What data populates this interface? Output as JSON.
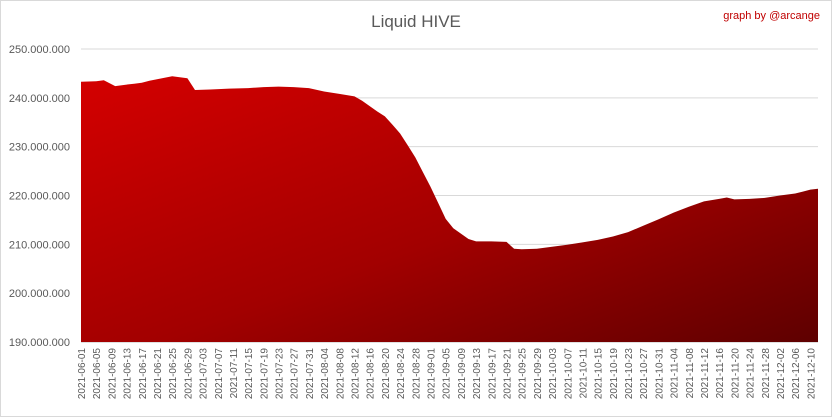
{
  "chart_data": {
    "type": "area",
    "title": "Liquid HIVE",
    "credit": "graph by @arcange",
    "xlabel": "",
    "ylabel": "",
    "ylim": [
      190000000,
      250000000
    ],
    "grid": true,
    "legend": "none",
    "y_ticks": [
      "190.000.000",
      "200.000.000",
      "210.000.000",
      "220.000.000",
      "230.000.000",
      "240.000.000",
      "250.000.000"
    ],
    "x_tick_labels": [
      "2021-06-01",
      "2021-06-05",
      "2021-06-09",
      "2021-06-13",
      "2021-06-17",
      "2021-06-21",
      "2021-06-25",
      "2021-06-29",
      "2021-07-03",
      "2021-07-07",
      "2021-07-11",
      "2021-07-15",
      "2021-07-19",
      "2021-07-23",
      "2021-07-27",
      "2021-07-31",
      "2021-08-04",
      "2021-08-08",
      "2021-08-12",
      "2021-08-16",
      "2021-08-20",
      "2021-08-24",
      "2021-08-28",
      "2021-09-01",
      "2021-09-05",
      "2021-09-09",
      "2021-09-13",
      "2021-09-17",
      "2021-09-21",
      "2021-09-25",
      "2021-09-29",
      "2021-10-03",
      "2021-10-07",
      "2021-10-11",
      "2021-10-15",
      "2021-10-19",
      "2021-10-23",
      "2021-10-27",
      "2021-10-31",
      "2021-11-04",
      "2021-11-08",
      "2021-11-12",
      "2021-11-16",
      "2021-11-20",
      "2021-11-24",
      "2021-11-28",
      "2021-12-02",
      "2021-12-06",
      "2021-12-10"
    ],
    "x": [
      "2021-06-01",
      "2021-06-05",
      "2021-06-07",
      "2021-06-10",
      "2021-06-13",
      "2021-06-15",
      "2021-06-17",
      "2021-06-19",
      "2021-06-21",
      "2021-06-23",
      "2021-06-25",
      "2021-06-27",
      "2021-06-29",
      "2021-07-01",
      "2021-07-05",
      "2021-07-10",
      "2021-07-15",
      "2021-07-19",
      "2021-07-23",
      "2021-07-27",
      "2021-07-31",
      "2021-08-04",
      "2021-08-08",
      "2021-08-12",
      "2021-08-14",
      "2021-08-16",
      "2021-08-18",
      "2021-08-20",
      "2021-08-22",
      "2021-08-24",
      "2021-08-26",
      "2021-08-28",
      "2021-08-30",
      "2021-09-01",
      "2021-09-03",
      "2021-09-05",
      "2021-09-07",
      "2021-09-09",
      "2021-09-11",
      "2021-09-13",
      "2021-09-17",
      "2021-09-21",
      "2021-09-23",
      "2021-09-25",
      "2021-09-29",
      "2021-10-01",
      "2021-10-03",
      "2021-10-07",
      "2021-10-11",
      "2021-10-15",
      "2021-10-19",
      "2021-10-23",
      "2021-10-27",
      "2021-10-31",
      "2021-11-04",
      "2021-11-08",
      "2021-11-12",
      "2021-11-16",
      "2021-11-18",
      "2021-11-20",
      "2021-11-24",
      "2021-11-28",
      "2021-12-02",
      "2021-12-06",
      "2021-12-08",
      "2021-12-10",
      "2021-12-12"
    ],
    "values": [
      243300000,
      243400000,
      243600000,
      242400000,
      242700000,
      242900000,
      243100000,
      243500000,
      243800000,
      244100000,
      244400000,
      244200000,
      244000000,
      241600000,
      241700000,
      241900000,
      242000000,
      242200000,
      242300000,
      242200000,
      242000000,
      241300000,
      240800000,
      240300000,
      239400000,
      238300000,
      237200000,
      236200000,
      234500000,
      232700000,
      230300000,
      227800000,
      224800000,
      221800000,
      218500000,
      215200000,
      213300000,
      212200000,
      211100000,
      210600000,
      210600000,
      210500000,
      209100000,
      209000000,
      209100000,
      209300000,
      209500000,
      209900000,
      210400000,
      210900000,
      211600000,
      212500000,
      213800000,
      215100000,
      216500000,
      217700000,
      218800000,
      219300000,
      219600000,
      219200000,
      219300000,
      219500000,
      220000000,
      220400000,
      220800000,
      221200000,
      221400000
    ]
  }
}
